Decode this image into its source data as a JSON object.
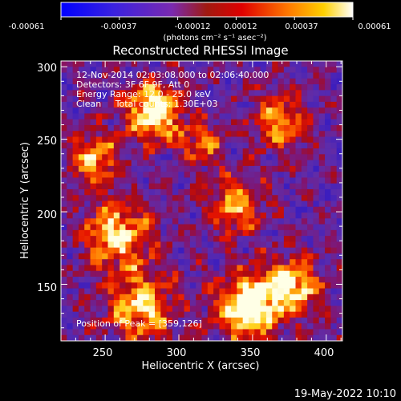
{
  "colorbar": {
    "ticks": [
      "-0.00061",
      "-0.00037",
      "-0.00012",
      "0.00012",
      "0.00037",
      "0.00061"
    ],
    "units": "(photons cm⁻² s⁻¹ asec⁻²)"
  },
  "plot": {
    "title": "Reconstructed RHESSI Image",
    "annotations": [
      "12-Nov-2014 02:03:08.000 to 02:06:40.000",
      "Detectors: 3F 6F 9F, Att 0",
      "Energy Range: 12.0 - 25.0 keV",
      "Clean     Total counts: 1.30E+03"
    ],
    "peak_label": "Position of Peak = [359,126]",
    "xlabel": "Heliocentric X (arcsec)",
    "ylabel": "Heliocentric Y (arcsec)",
    "x_ticks": [
      "250",
      "300",
      "350",
      "400"
    ],
    "y_ticks": [
      "150",
      "200",
      "250",
      "300"
    ],
    "xlim": [
      220,
      411
    ],
    "ylim": [
      111,
      304
    ]
  },
  "footer": {
    "timestamp": "19-May-2022 10:10"
  },
  "colors": {
    "low": "#0000ff",
    "mid": "#ff0000",
    "high": "#ffffff"
  }
}
